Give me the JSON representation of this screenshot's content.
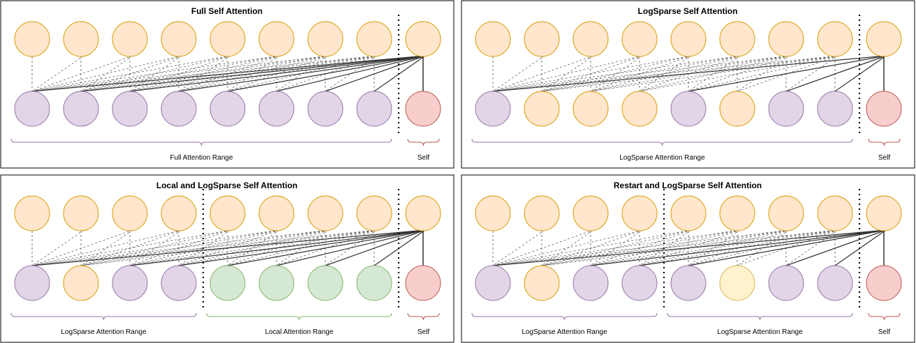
{
  "colors": {
    "orange_fill": "#ffe6cc",
    "orange_stroke": "#d79b00",
    "purple_fill": "#e1d5e7",
    "purple_stroke": "#9673a6",
    "red_fill": "#f8cecc",
    "red_stroke": "#b85450",
    "green_fill": "#d5e8d4",
    "green_stroke": "#82b366",
    "yellow_fill": "#fff2cc",
    "yellow_stroke": "#d6b656"
  },
  "panels": [
    {
      "title": "Full Self Attention",
      "bottom_colors": [
        "purple",
        "purple",
        "purple",
        "purple",
        "purple",
        "purple",
        "purple",
        "purple",
        "red"
      ],
      "solid_edges_to": [
        0,
        1,
        2,
        3,
        4,
        5,
        6,
        7
      ],
      "dividers_after": [],
      "ranges": [
        {
          "label": "Full Attention Range",
          "from": 0,
          "to": 7,
          "color": "purple"
        },
        {
          "label": "Self",
          "from": 8,
          "to": 8,
          "color": "red"
        }
      ]
    },
    {
      "title": "LogSparse Self Attention",
      "bottom_colors": [
        "purple",
        "orange",
        "orange",
        "orange",
        "purple",
        "orange",
        "purple",
        "purple",
        "red"
      ],
      "solid_edges_to": [
        0,
        4,
        6,
        7
      ],
      "dividers_after": [],
      "ranges": [
        {
          "label": "LogSparse Attention Range",
          "from": 0,
          "to": 7,
          "color": "purple"
        },
        {
          "label": "Self",
          "from": 8,
          "to": 8,
          "color": "red"
        }
      ]
    },
    {
      "title": "Local and LogSparse Self Attention",
      "bottom_colors": [
        "purple",
        "orange",
        "purple",
        "purple",
        "green",
        "green",
        "green",
        "green",
        "red"
      ],
      "solid_edges_to": [
        0,
        2,
        3,
        4,
        5,
        6,
        7
      ],
      "dividers_after": [
        3
      ],
      "ranges": [
        {
          "label": "LogSparse Attention Range",
          "from": 0,
          "to": 3,
          "color": "purple"
        },
        {
          "label": "Local Attention Range",
          "from": 4,
          "to": 7,
          "color": "green"
        },
        {
          "label": "Self",
          "from": 8,
          "to": 8,
          "color": "red"
        }
      ]
    },
    {
      "title": "Restart and LogSparse Self Attention",
      "bottom_colors": [
        "purple",
        "orange",
        "purple",
        "purple",
        "purple",
        "yellow",
        "purple",
        "purple",
        "red"
      ],
      "solid_edges_to": [
        0,
        2,
        3,
        4,
        6,
        7
      ],
      "dividers_after": [
        3
      ],
      "ranges": [
        {
          "label": "LogSparse Attention Range",
          "from": 0,
          "to": 3,
          "color": "purple"
        },
        {
          "label": "LogSparse Attention Range",
          "from": 4,
          "to": 7,
          "color": "purple"
        },
        {
          "label": "Self",
          "from": 8,
          "to": 8,
          "color": "red"
        }
      ]
    }
  ]
}
